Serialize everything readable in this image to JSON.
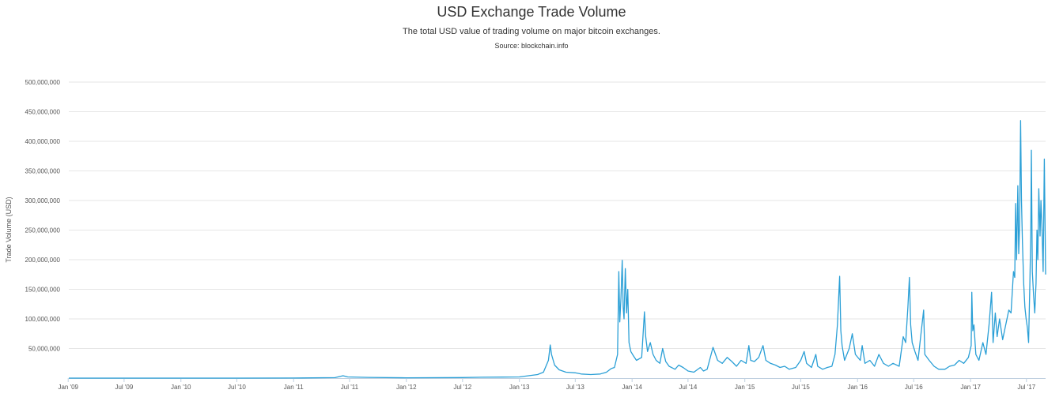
{
  "chart_data": {
    "type": "line",
    "title": "USD Exchange Trade Volume",
    "subtitle": "The total USD value of trading volume on major bitcoin exchanges.",
    "source": "Source: blockchain.info",
    "xlabel": "",
    "ylabel": "Trade Volume (USD)",
    "ylim": [
      0,
      500000000
    ],
    "xlim": [
      "2009-01-03",
      "2017-09-01"
    ],
    "grid": "horizontal",
    "legend": "none",
    "line_color": "#2a9fd6",
    "y_ticks": [
      "50,000,000",
      "100,000,000",
      "150,000,000",
      "200,000,000",
      "250,000,000",
      "300,000,000",
      "350,000,000",
      "400,000,000",
      "450,000,000",
      "500,000,000"
    ],
    "x_ticks": [
      "Jan '09",
      "Jul '09",
      "Jan '10",
      "Jul '10",
      "Jan '11",
      "Jul '11",
      "Jan '12",
      "Jul '12",
      "Jan '13",
      "Jul '13",
      "Jan '14",
      "Jul '14",
      "Jan '15",
      "Jul '15",
      "Jan '16",
      "Jul '16",
      "Jan '17",
      "Jul '17"
    ],
    "series": [
      {
        "values": [
          [
            "2009-01-03",
            0
          ],
          [
            "2010-07-01",
            0
          ],
          [
            "2011-01-01",
            200000
          ],
          [
            "2011-05-15",
            800000
          ],
          [
            "2011-06-10",
            4000000
          ],
          [
            "2011-06-25",
            2000000
          ],
          [
            "2011-09-01",
            1200000
          ],
          [
            "2012-01-01",
            600000
          ],
          [
            "2012-07-01",
            900000
          ],
          [
            "2012-09-01",
            1500000
          ],
          [
            "2013-01-01",
            2000000
          ],
          [
            "2013-03-01",
            6000000
          ],
          [
            "2013-03-20",
            10000000
          ],
          [
            "2013-04-05",
            30000000
          ],
          [
            "2013-04-11",
            56000000
          ],
          [
            "2013-04-15",
            40000000
          ],
          [
            "2013-04-25",
            22000000
          ],
          [
            "2013-05-10",
            14000000
          ],
          [
            "2013-06-01",
            10000000
          ],
          [
            "2013-07-01",
            9000000
          ],
          [
            "2013-07-20",
            7000000
          ],
          [
            "2013-08-20",
            6000000
          ],
          [
            "2013-09-20",
            7000000
          ],
          [
            "2013-10-10",
            10000000
          ],
          [
            "2013-10-25",
            16000000
          ],
          [
            "2013-11-05",
            18000000
          ],
          [
            "2013-11-15",
            40000000
          ],
          [
            "2013-11-19",
            180000000
          ],
          [
            "2013-11-22",
            95000000
          ],
          [
            "2013-11-26",
            135000000
          ],
          [
            "2013-11-30",
            199000000
          ],
          [
            "2013-12-03",
            120000000
          ],
          [
            "2013-12-06",
            100000000
          ],
          [
            "2013-12-10",
            185000000
          ],
          [
            "2013-12-14",
            110000000
          ],
          [
            "2013-12-18",
            150000000
          ],
          [
            "2013-12-22",
            60000000
          ],
          [
            "2013-12-28",
            45000000
          ],
          [
            "2014-01-05",
            38000000
          ],
          [
            "2014-01-15",
            30000000
          ],
          [
            "2014-02-01",
            35000000
          ],
          [
            "2014-02-10",
            112000000
          ],
          [
            "2014-02-14",
            70000000
          ],
          [
            "2014-02-20",
            45000000
          ],
          [
            "2014-03-01",
            60000000
          ],
          [
            "2014-03-10",
            40000000
          ],
          [
            "2014-03-20",
            30000000
          ],
          [
            "2014-04-01",
            25000000
          ],
          [
            "2014-04-10",
            50000000
          ],
          [
            "2014-04-20",
            28000000
          ],
          [
            "2014-05-01",
            20000000
          ],
          [
            "2014-05-20",
            15000000
          ],
          [
            "2014-06-01",
            22000000
          ],
          [
            "2014-06-15",
            18000000
          ],
          [
            "2014-07-01",
            12000000
          ],
          [
            "2014-07-20",
            10000000
          ],
          [
            "2014-08-10",
            18000000
          ],
          [
            "2014-08-20",
            12000000
          ],
          [
            "2014-09-01",
            15000000
          ],
          [
            "2014-09-20",
            52000000
          ],
          [
            "2014-10-05",
            30000000
          ],
          [
            "2014-10-20",
            25000000
          ],
          [
            "2014-11-05",
            35000000
          ],
          [
            "2014-11-20",
            28000000
          ],
          [
            "2014-12-05",
            20000000
          ],
          [
            "2014-12-20",
            30000000
          ],
          [
            "2015-01-05",
            25000000
          ],
          [
            "2015-01-14",
            55000000
          ],
          [
            "2015-01-20",
            30000000
          ],
          [
            "2015-02-01",
            28000000
          ],
          [
            "2015-02-15",
            35000000
          ],
          [
            "2015-03-01",
            55000000
          ],
          [
            "2015-03-10",
            30000000
          ],
          [
            "2015-03-25",
            25000000
          ],
          [
            "2015-04-10",
            22000000
          ],
          [
            "2015-04-25",
            18000000
          ],
          [
            "2015-05-10",
            20000000
          ],
          [
            "2015-05-25",
            15000000
          ],
          [
            "2015-06-15",
            18000000
          ],
          [
            "2015-07-01",
            30000000
          ],
          [
            "2015-07-12",
            45000000
          ],
          [
            "2015-07-20",
            25000000
          ],
          [
            "2015-08-05",
            18000000
          ],
          [
            "2015-08-19",
            40000000
          ],
          [
            "2015-08-25",
            20000000
          ],
          [
            "2015-09-10",
            15000000
          ],
          [
            "2015-09-25",
            18000000
          ],
          [
            "2015-10-10",
            20000000
          ],
          [
            "2015-10-20",
            40000000
          ],
          [
            "2015-10-28",
            90000000
          ],
          [
            "2015-11-04",
            172000000
          ],
          [
            "2015-11-08",
            80000000
          ],
          [
            "2015-11-12",
            55000000
          ],
          [
            "2015-11-20",
            30000000
          ],
          [
            "2015-12-05",
            50000000
          ],
          [
            "2015-12-15",
            75000000
          ],
          [
            "2015-12-25",
            40000000
          ],
          [
            "2016-01-10",
            30000000
          ],
          [
            "2016-01-16",
            55000000
          ],
          [
            "2016-01-25",
            25000000
          ],
          [
            "2016-02-10",
            30000000
          ],
          [
            "2016-02-25",
            20000000
          ],
          [
            "2016-03-10",
            40000000
          ],
          [
            "2016-03-25",
            25000000
          ],
          [
            "2016-04-10",
            20000000
          ],
          [
            "2016-04-25",
            25000000
          ],
          [
            "2016-05-15",
            20000000
          ],
          [
            "2016-05-28",
            70000000
          ],
          [
            "2016-06-05",
            60000000
          ],
          [
            "2016-06-12",
            120000000
          ],
          [
            "2016-06-17",
            170000000
          ],
          [
            "2016-06-21",
            90000000
          ],
          [
            "2016-06-26",
            60000000
          ],
          [
            "2016-07-05",
            45000000
          ],
          [
            "2016-07-15",
            30000000
          ],
          [
            "2016-08-02",
            115000000
          ],
          [
            "2016-08-06",
            40000000
          ],
          [
            "2016-08-20",
            30000000
          ],
          [
            "2016-09-05",
            20000000
          ],
          [
            "2016-09-20",
            15000000
          ],
          [
            "2016-10-10",
            15000000
          ],
          [
            "2016-10-25",
            20000000
          ],
          [
            "2016-11-10",
            22000000
          ],
          [
            "2016-11-25",
            30000000
          ],
          [
            "2016-12-10",
            25000000
          ],
          [
            "2016-12-25",
            35000000
          ],
          [
            "2017-01-03",
            55000000
          ],
          [
            "2017-01-05",
            145000000
          ],
          [
            "2017-01-08",
            80000000
          ],
          [
            "2017-01-12",
            90000000
          ],
          [
            "2017-01-18",
            40000000
          ],
          [
            "2017-01-28",
            30000000
          ],
          [
            "2017-02-10",
            60000000
          ],
          [
            "2017-02-20",
            40000000
          ],
          [
            "2017-03-02",
            90000000
          ],
          [
            "2017-03-10",
            145000000
          ],
          [
            "2017-03-15",
            60000000
          ],
          [
            "2017-03-22",
            110000000
          ],
          [
            "2017-03-28",
            70000000
          ],
          [
            "2017-04-05",
            100000000
          ],
          [
            "2017-04-15",
            65000000
          ],
          [
            "2017-04-25",
            90000000
          ],
          [
            "2017-05-05",
            115000000
          ],
          [
            "2017-05-12",
            110000000
          ],
          [
            "2017-05-20",
            180000000
          ],
          [
            "2017-05-24",
            170000000
          ],
          [
            "2017-05-27",
            295000000
          ],
          [
            "2017-05-30",
            200000000
          ],
          [
            "2017-06-03",
            325000000
          ],
          [
            "2017-06-06",
            210000000
          ],
          [
            "2017-06-09",
            260000000
          ],
          [
            "2017-06-12",
            435000000
          ],
          [
            "2017-06-15",
            300000000
          ],
          [
            "2017-06-18",
            230000000
          ],
          [
            "2017-06-22",
            160000000
          ],
          [
            "2017-06-26",
            120000000
          ],
          [
            "2017-06-30",
            100000000
          ],
          [
            "2017-07-04",
            85000000
          ],
          [
            "2017-07-08",
            60000000
          ],
          [
            "2017-07-12",
            160000000
          ],
          [
            "2017-07-15",
            245000000
          ],
          [
            "2017-07-17",
            385000000
          ],
          [
            "2017-07-20",
            180000000
          ],
          [
            "2017-07-24",
            140000000
          ],
          [
            "2017-07-28",
            110000000
          ],
          [
            "2017-08-01",
            160000000
          ],
          [
            "2017-08-04",
            250000000
          ],
          [
            "2017-08-07",
            200000000
          ],
          [
            "2017-08-10",
            320000000
          ],
          [
            "2017-08-14",
            240000000
          ],
          [
            "2017-08-17",
            300000000
          ],
          [
            "2017-08-20",
            260000000
          ],
          [
            "2017-08-24",
            180000000
          ],
          [
            "2017-08-28",
            370000000
          ],
          [
            "2017-09-01",
            175000000
          ]
        ]
      }
    ]
  }
}
